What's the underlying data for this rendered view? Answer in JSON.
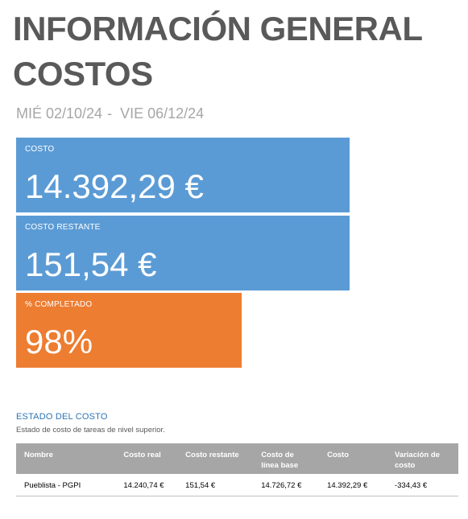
{
  "report": {
    "title_line1": "INFORMACIÓN GENERAL",
    "title_line2": "COSTOS",
    "date_start": "MIÉ 02/10/24",
    "date_separator": "-",
    "date_end": "VIE 06/12/24"
  },
  "cards": {
    "cost": {
      "label": "COSTO",
      "value": "14.392,29 €",
      "color": "#5b9bd5"
    },
    "remaining": {
      "label": "COSTO RESTANTE",
      "value": "151,54 €",
      "color": "#5b9bd5"
    },
    "complete": {
      "label": "% COMPLETADO",
      "value": "98%",
      "color": "#ed7d31"
    }
  },
  "cost_status": {
    "title": "ESTADO DEL COSTO",
    "subtitle": "Estado de costo de tareas de nivel superior.",
    "columns": [
      "Nombre",
      "Costo real",
      "Costo restante",
      "Costo de línea base",
      "Costo",
      "Variación de costo"
    ],
    "rows": [
      [
        "Pueblista - PGPI",
        "14.240,74 €",
        "151,54 €",
        "14.726,72 €",
        "14.392,29 €",
        "-334,43 €"
      ]
    ]
  }
}
